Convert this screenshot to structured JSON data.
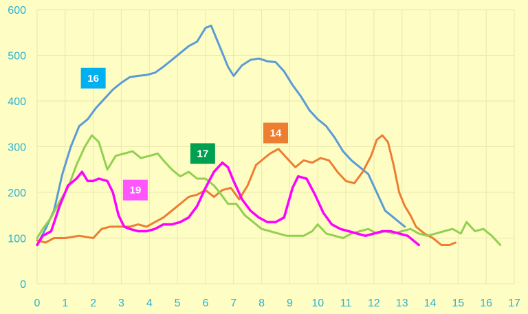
{
  "chart_data": {
    "type": "line",
    "title": "",
    "xlabel": "",
    "ylabel": "",
    "xlim": [
      0,
      17
    ],
    "ylim": [
      0,
      600
    ],
    "x_ticks": [
      0,
      1,
      2,
      3,
      4,
      5,
      6,
      7,
      8,
      9,
      10,
      11,
      12,
      13,
      14,
      15,
      16,
      17
    ],
    "x_tick_labels": [
      "0",
      "1",
      "2",
      "3",
      "4",
      "5",
      "6",
      "7",
      "8",
      "9",
      "10",
      "11",
      "12",
      "13",
      "14",
      "15",
      "16",
      "17"
    ],
    "y_ticks": [
      0,
      100,
      200,
      300,
      400,
      500,
      600
    ],
    "y_tick_labels": [
      "0",
      "100",
      "200",
      "300",
      "400",
      "500",
      "600"
    ],
    "grid": true,
    "legend": "none",
    "series": [
      {
        "name": "16",
        "color": "#5b9bd5",
        "tag_color": "#00b0f0",
        "tag_at": [
          2.0,
          450
        ],
        "x": [
          0,
          0.3,
          0.6,
          0.9,
          1.2,
          1.5,
          1.8,
          2.1,
          2.4,
          2.7,
          3.0,
          3.3,
          3.6,
          3.9,
          4.2,
          4.5,
          4.8,
          5.1,
          5.4,
          5.7,
          6.0,
          6.2,
          6.5,
          6.8,
          7.0,
          7.3,
          7.6,
          7.9,
          8.2,
          8.5,
          8.8,
          9.1,
          9.4,
          9.7,
          10.0,
          10.3,
          10.6,
          10.9,
          11.2,
          11.5,
          11.8,
          12.1,
          12.4,
          12.7,
          13.0,
          13.1
        ],
        "y": [
          85,
          120,
          160,
          240,
          300,
          345,
          360,
          385,
          405,
          425,
          440,
          452,
          455,
          457,
          462,
          475,
          490,
          505,
          520,
          530,
          560,
          565,
          520,
          475,
          455,
          478,
          490,
          493,
          487,
          485,
          465,
          435,
          410,
          380,
          360,
          345,
          320,
          290,
          270,
          255,
          240,
          200,
          160,
          145,
          130,
          125
        ]
      },
      {
        "name": "14",
        "color": "#ed7d31",
        "tag_color": "#ed7d31",
        "tag_at": [
          8.5,
          330
        ],
        "x": [
          0,
          0.3,
          0.6,
          1.0,
          1.5,
          2.0,
          2.3,
          2.6,
          3.0,
          3.3,
          3.6,
          3.9,
          4.2,
          4.5,
          4.8,
          5.1,
          5.4,
          5.7,
          6.0,
          6.3,
          6.6,
          6.9,
          7.2,
          7.5,
          7.8,
          8.0,
          8.3,
          8.6,
          8.9,
          9.2,
          9.5,
          9.8,
          10.1,
          10.4,
          10.7,
          11.0,
          11.3,
          11.6,
          11.9,
          12.1,
          12.3,
          12.5,
          12.7,
          12.9,
          13.1,
          13.3,
          13.5,
          13.8,
          14.1,
          14.4,
          14.7,
          14.9
        ],
        "y": [
          95,
          90,
          100,
          100,
          105,
          100,
          120,
          125,
          125,
          125,
          130,
          125,
          135,
          145,
          160,
          175,
          190,
          195,
          205,
          190,
          205,
          210,
          185,
          215,
          260,
          270,
          285,
          295,
          275,
          255,
          270,
          265,
          275,
          270,
          245,
          225,
          220,
          245,
          280,
          315,
          325,
          310,
          260,
          200,
          170,
          150,
          125,
          110,
          100,
          85,
          85,
          90
        ]
      },
      {
        "name": "17",
        "color": "#92d050",
        "tag_color": "#00a050",
        "tag_at": [
          5.9,
          285
        ],
        "x": [
          0,
          0.2,
          0.5,
          0.8,
          1.1,
          1.4,
          1.7,
          1.95,
          2.2,
          2.5,
          2.8,
          3.1,
          3.4,
          3.7,
          4.0,
          4.3,
          4.5,
          4.8,
          5.1,
          5.4,
          5.7,
          6.0,
          6.3,
          6.5,
          6.8,
          7.1,
          7.4,
          7.7,
          8.0,
          8.3,
          8.6,
          8.9,
          9.2,
          9.5,
          9.8,
          10.0,
          10.3,
          10.6,
          10.9,
          11.2,
          11.5,
          11.8,
          12.1,
          12.4,
          12.7,
          13.0,
          13.3,
          13.6,
          13.9,
          14.2,
          14.5,
          14.8,
          15.1,
          15.3,
          15.6,
          15.9,
          16.2,
          16.5
        ],
        "y": [
          100,
          120,
          145,
          180,
          210,
          260,
          300,
          325,
          310,
          250,
          280,
          285,
          290,
          275,
          280,
          285,
          270,
          250,
          235,
          245,
          230,
          230,
          215,
          200,
          175,
          175,
          150,
          135,
          120,
          115,
          110,
          105,
          105,
          105,
          115,
          130,
          110,
          105,
          100,
          110,
          115,
          120,
          110,
          115,
          110,
          115,
          120,
          110,
          105,
          110,
          115,
          120,
          110,
          135,
          115,
          120,
          105,
          85
        ]
      },
      {
        "name": "19",
        "color": "#ff00ff",
        "tag_color": "#ff55ff",
        "tag_at": [
          3.5,
          205
        ],
        "x": [
          0,
          0.2,
          0.5,
          0.8,
          1.1,
          1.4,
          1.6,
          1.8,
          2.0,
          2.2,
          2.5,
          2.7,
          2.9,
          3.1,
          3.3,
          3.6,
          3.9,
          4.2,
          4.5,
          4.8,
          5.1,
          5.4,
          5.7,
          6.0,
          6.3,
          6.6,
          6.8,
          7.0,
          7.3,
          7.6,
          7.9,
          8.2,
          8.5,
          8.8,
          9.1,
          9.3,
          9.6,
          9.9,
          10.2,
          10.5,
          10.8,
          11.1,
          11.4,
          11.7,
          12.0,
          12.3,
          12.6,
          12.9,
          13.2,
          13.4,
          13.6
        ],
        "y": [
          85,
          105,
          115,
          170,
          215,
          230,
          245,
          225,
          225,
          230,
          225,
          200,
          150,
          125,
          120,
          115,
          115,
          120,
          130,
          130,
          135,
          145,
          170,
          210,
          245,
          265,
          255,
          225,
          185,
          160,
          145,
          135,
          135,
          145,
          210,
          235,
          230,
          195,
          155,
          130,
          120,
          115,
          110,
          105,
          110,
          115,
          115,
          110,
          105,
          95,
          85
        ]
      }
    ]
  }
}
